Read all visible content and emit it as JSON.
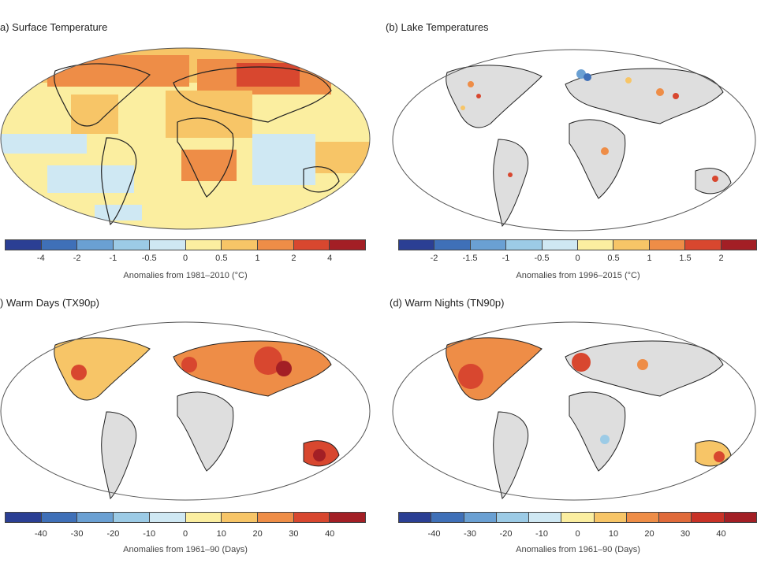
{
  "palettes": {
    "ten": [
      "#2b3f94",
      "#3f70b8",
      "#6aa0d3",
      "#9ccbe6",
      "#cfe8f3",
      "#fbeea0",
      "#f7c567",
      "#ee8d47",
      "#d8472f",
      "#a31f25"
    ],
    "eleven": [
      "#2b3f94",
      "#3f70b8",
      "#6aa0d3",
      "#9ccbe6",
      "#cfe8f3",
      "#fbeea0",
      "#f7c567",
      "#ee8d47",
      "#e06a3a",
      "#c83227",
      "#a31f25"
    ]
  },
  "ocean_fill": "#ffffff",
  "land_fill": "#dedede",
  "panels": [
    {
      "title": "a) Surface Temperature",
      "ticks": [
        "-4",
        "-2",
        "-1",
        "-0.5",
        "0",
        "0.5",
        "1",
        "2",
        "4"
      ],
      "axis_label": "Anomalies from 1981–2010 (°C)"
    },
    {
      "title": "(b) Lake Temperatures",
      "ticks": [
        "-2",
        "-1.5",
        "-1",
        "-0.5",
        "0",
        "0.5",
        "1",
        "1.5",
        "2"
      ],
      "axis_label": "Anomalies from 1996–2015 (°C)"
    },
    {
      "title": ") Warm Days (TX90p)",
      "ticks": [
        "-40",
        "-30",
        "-20",
        "-10",
        "0",
        "10",
        "20",
        "30",
        "40"
      ],
      "axis_label": "Anomalies from 1961–90 (Days)"
    },
    {
      "title": "(d) Warm Nights (TN90p)",
      "ticks": [
        "-40",
        "-30",
        "-20",
        "-10",
        "0",
        "10",
        "20",
        "30",
        "40"
      ],
      "axis_label": "Anomalies from 1961–90 (Days)"
    }
  ]
}
